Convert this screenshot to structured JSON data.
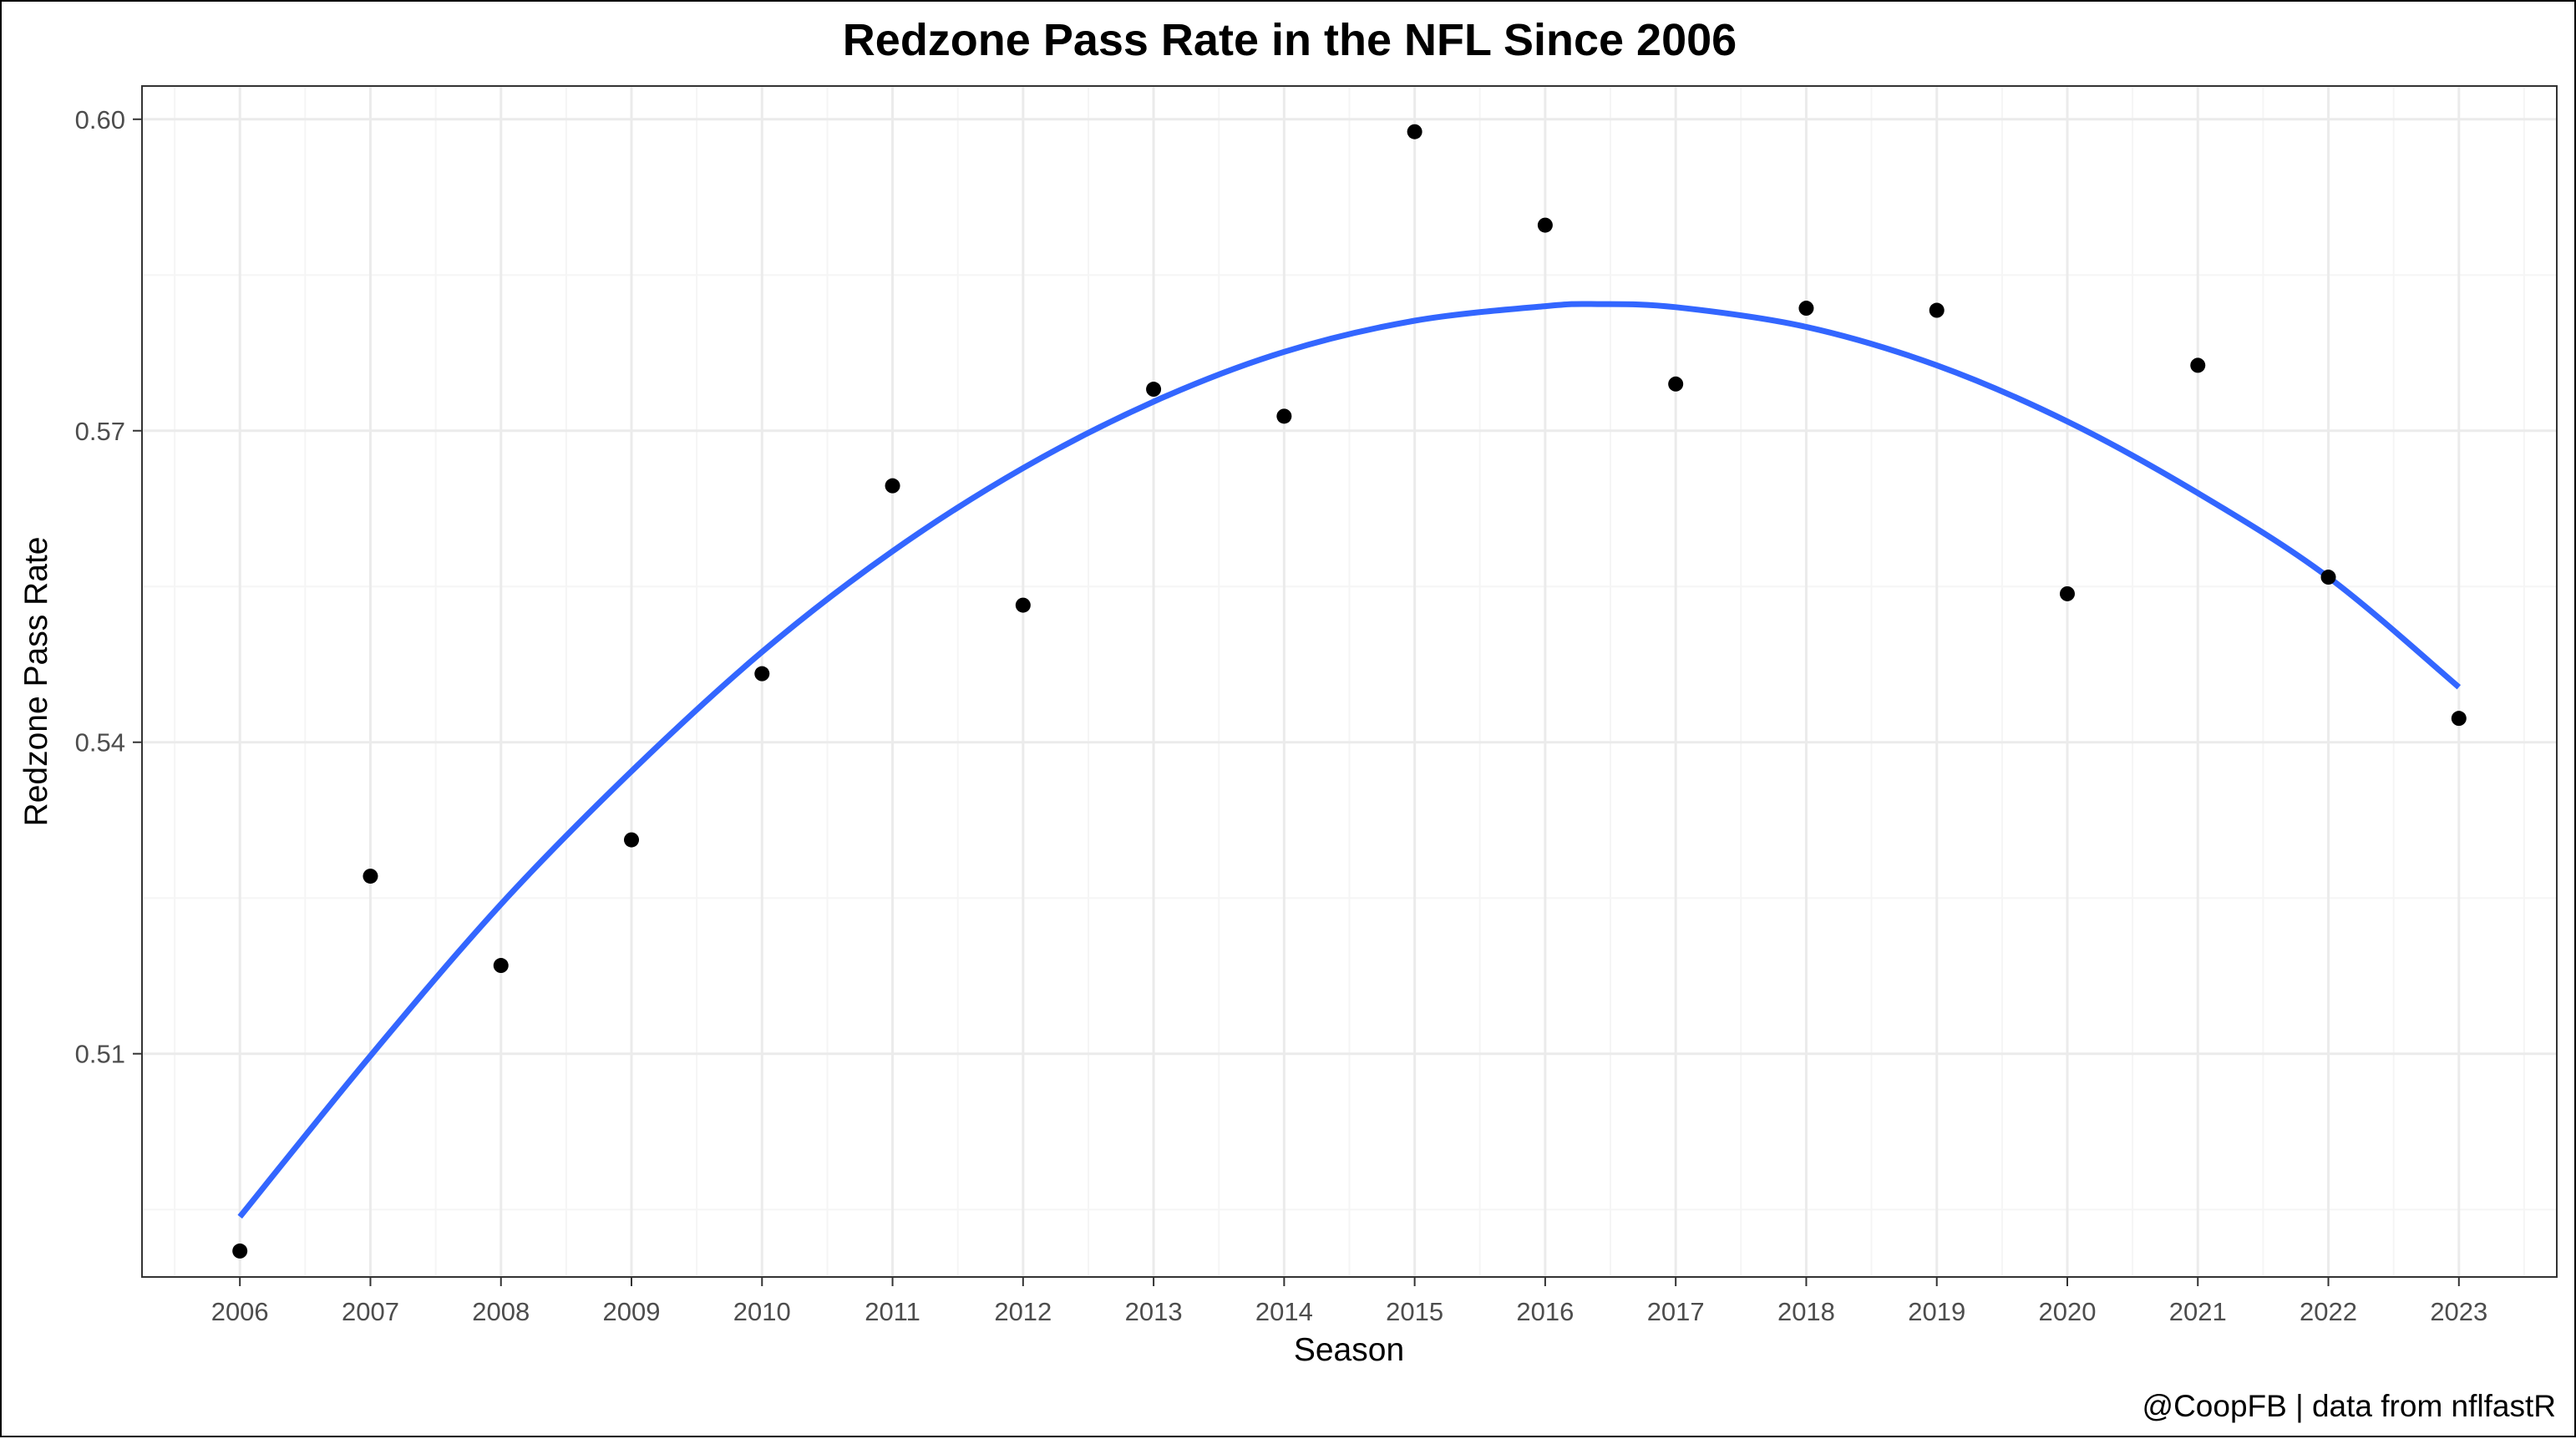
{
  "chart_data": {
    "type": "scatter",
    "title": "Redzone Pass Rate in the NFL Since 2006",
    "xlabel": "Season",
    "ylabel": "Redzone Pass Rate",
    "caption": "@CoopFB | data from nflfastR",
    "xlim": [
      2005.25,
      2023.75
    ],
    "ylim": [
      0.4885,
      0.6032
    ],
    "x_ticks": [
      2006,
      2007,
      2008,
      2009,
      2010,
      2011,
      2012,
      2013,
      2014,
      2015,
      2016,
      2017,
      2018,
      2019,
      2020,
      2021,
      2022,
      2023
    ],
    "y_ticks": [
      0.51,
      0.54,
      0.57,
      0.6
    ],
    "y_tick_labels": [
      "0.51",
      "0.54",
      "0.57",
      "0.60"
    ],
    "grid": true,
    "legend": "none",
    "points": {
      "x": [
        2006,
        2007,
        2008,
        2009,
        2010,
        2011,
        2012,
        2013,
        2014,
        2015,
        2016,
        2017,
        2018,
        2019,
        2020,
        2021,
        2022,
        2023
      ],
      "y": [
        0.491,
        0.5271,
        0.5185,
        0.5306,
        0.5466,
        0.5647,
        0.5532,
        0.574,
        0.5714,
        0.5988,
        0.5898,
        0.5745,
        0.5818,
        0.5816,
        0.5543,
        0.5763,
        0.5559,
        0.5423
      ]
    },
    "trend": {
      "type": "smooth",
      "x": [
        2006,
        2007,
        2008,
        2009,
        2010,
        2011,
        2012,
        2013,
        2014,
        2015,
        2016,
        2016.4,
        2017,
        2018,
        2019,
        2020,
        2021,
        2022,
        2023
      ],
      "y": [
        0.4943,
        0.5098,
        0.5244,
        0.5372,
        0.5487,
        0.5584,
        0.5664,
        0.5728,
        0.5776,
        0.5806,
        0.582,
        0.5822,
        0.5819,
        0.58,
        0.5763,
        0.5709,
        0.564,
        0.5559,
        0.5453
      ]
    },
    "colors": {
      "points": "#000000",
      "trend": "#3366ff",
      "grid_major": "#ebebeb",
      "grid_minor": "#f5f5f5",
      "panel_border": "#333333",
      "tick_text": "#4d4d4d"
    }
  }
}
